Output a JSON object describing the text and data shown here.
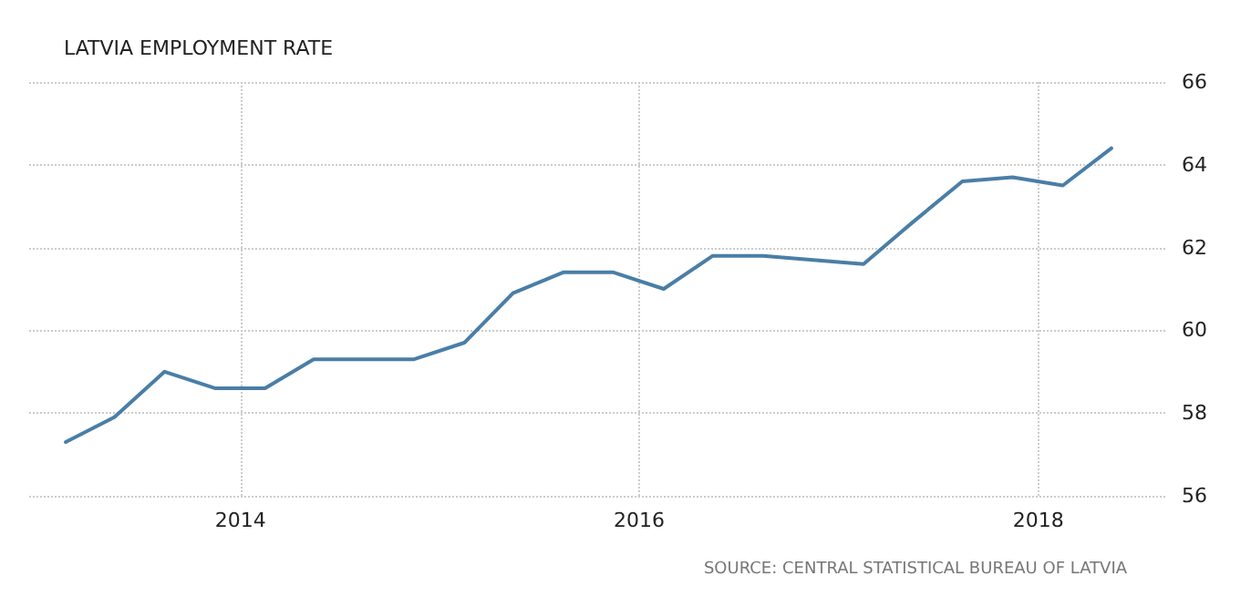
{
  "chart_data": {
    "type": "line",
    "title": "LATVIA EMPLOYMENT RATE",
    "annotations": [
      "SOURCE: CENTRAL STATISTICAL BUREAU OF LATVIA"
    ],
    "x": [
      "2013-02-15",
      "2013-05-15",
      "2013-08-15",
      "2013-11-15",
      "2014-02-15",
      "2014-05-15",
      "2014-08-15",
      "2014-11-15",
      "2015-02-15",
      "2015-05-15",
      "2015-08-15",
      "2015-11-15",
      "2016-02-15",
      "2016-05-15",
      "2016-08-15",
      "2016-11-15",
      "2017-02-15",
      "2017-05-15",
      "2017-08-15",
      "2017-11-15",
      "2018-02-15",
      "2018-05-15"
    ],
    "series": [
      {
        "color": "#4a7ea6",
        "values": [
          57.3,
          57.9,
          59.0,
          58.6,
          58.6,
          59.3,
          59.3,
          59.3,
          59.7,
          60.9,
          61.4,
          61.4,
          61.0,
          61.8,
          61.8,
          61.7,
          61.6,
          62.6,
          63.6,
          63.7,
          63.5,
          64.4
        ]
      }
    ],
    "xlim": [
      "2012-12-10",
      "2018-08-25"
    ],
    "xticks": [
      "2014",
      "2016",
      "2018"
    ],
    "ylim": [
      56,
      66
    ],
    "yticks": [
      56,
      58,
      60,
      62,
      64,
      66
    ],
    "grid": true,
    "marker": "none",
    "line_style": "solid"
  }
}
